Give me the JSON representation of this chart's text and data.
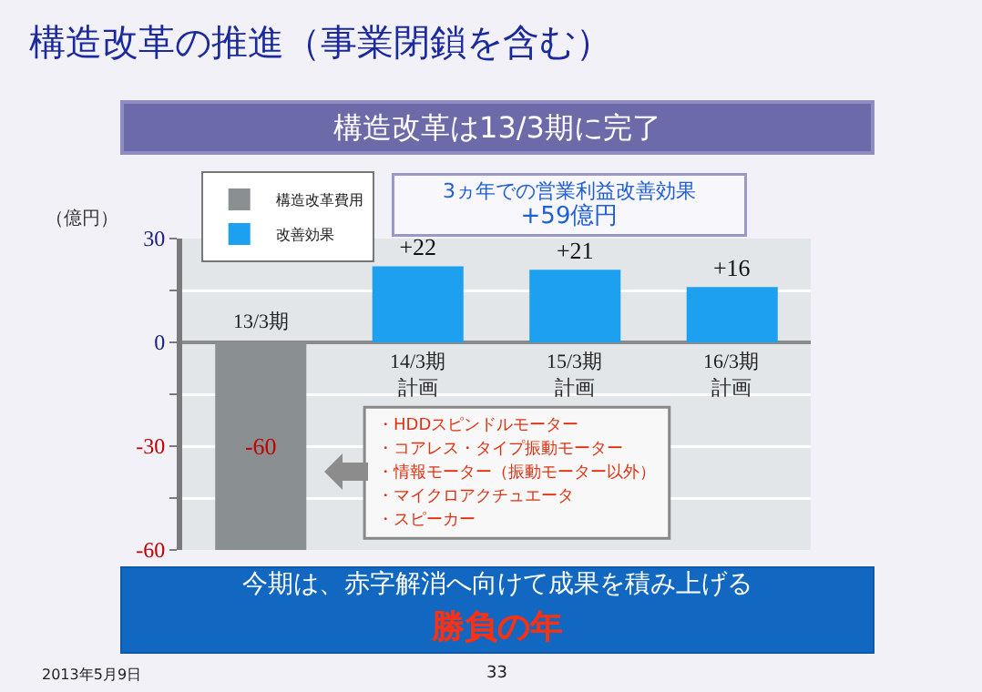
{
  "chart_data": {
    "type": "bar",
    "title": "構造改革の推進（事業閉鎖を含む）",
    "subtitle": "構造改革は13/3期に完了",
    "ylabel": "（億円）",
    "categories": [
      "13/3期",
      "14/3期計画",
      "15/3期計画",
      "16/3期計画"
    ],
    "series": [
      {
        "name": "構造改革費用",
        "color": "#8a8f91",
        "values": [
          -60,
          null,
          null,
          null
        ],
        "value_labels": [
          "-60",
          null,
          null,
          null
        ]
      },
      {
        "name": "改善効果",
        "color": "#1ea0f0",
        "values": [
          null,
          22,
          21,
          16
        ],
        "value_labels": [
          null,
          "+22",
          "+21",
          "+16"
        ]
      }
    ],
    "ylim": [
      -60,
      30
    ],
    "yticks": [
      -60,
      {
        "value": -45,
        "label": null
      },
      -30,
      {
        "value": -15,
        "label": null
      },
      0,
      {
        "value": 15,
        "label": null
      },
      30
    ],
    "grid": "y",
    "legend": "top left",
    "annotations": [
      "3ヵ年での営業利益改善効果\n+59億円",
      "・HDDスピンドルモーター",
      "・コアレス・タイプ振動モーター",
      "・情報モーター（振動モーター以外）",
      "・マイクロアクチュエータ",
      "・スピーカー",
      "今期は、赤字解消へ向けて成果を積み上げる",
      "勝負の年",
      "2013年5月9日",
      "33"
    ]
  }
}
